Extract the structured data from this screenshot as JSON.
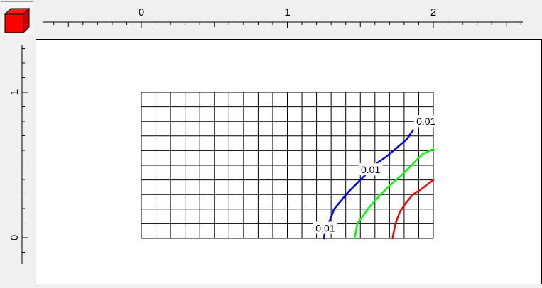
{
  "toolbar": {
    "view_cube": "view-cube-icon"
  },
  "rulers": {
    "horizontal": {
      "labels": [
        "0",
        "1",
        "2"
      ]
    },
    "vertical": {
      "labels": [
        "1",
        "0"
      ]
    }
  },
  "plot": {
    "grid": {
      "x_range": [
        0,
        2
      ],
      "y_range": [
        0,
        1
      ],
      "cols": 20,
      "rows": 10
    },
    "contours": [
      {
        "color": "#0000ff",
        "points": [
          [
            1.25,
            0
          ],
          [
            1.26,
            0.06
          ],
          [
            1.29,
            0.12
          ],
          [
            1.32,
            0.2
          ],
          [
            1.37,
            0.26
          ],
          [
            1.42,
            0.32
          ],
          [
            1.48,
            0.38
          ],
          [
            1.56,
            0.46
          ],
          [
            1.62,
            0.52
          ],
          [
            1.68,
            0.56
          ],
          [
            1.75,
            0.62
          ],
          [
            1.82,
            0.68
          ],
          [
            1.86,
            0.74
          ]
        ],
        "labels": [
          {
            "text": "0.01",
            "x": 1.26,
            "y": 0.07
          },
          {
            "text": "0.01",
            "x": 1.57,
            "y": 0.47
          },
          {
            "text": "0.01",
            "x": 1.95,
            "y": 0.8
          }
        ]
      },
      {
        "color": "#00ff00",
        "points": [
          [
            1.46,
            0
          ],
          [
            1.48,
            0.1
          ],
          [
            1.55,
            0.2
          ],
          [
            1.62,
            0.28
          ],
          [
            1.7,
            0.36
          ],
          [
            1.79,
            0.44
          ],
          [
            1.87,
            0.52
          ],
          [
            1.93,
            0.58
          ],
          [
            2.0,
            0.61
          ]
        ],
        "labels": []
      },
      {
        "color": "#ff0000",
        "points": [
          [
            1.72,
            0
          ],
          [
            1.74,
            0.1
          ],
          [
            1.77,
            0.18
          ],
          [
            1.81,
            0.24
          ],
          [
            1.86,
            0.3
          ],
          [
            1.92,
            0.34
          ],
          [
            2.0,
            0.4
          ]
        ],
        "labels": []
      }
    ]
  }
}
